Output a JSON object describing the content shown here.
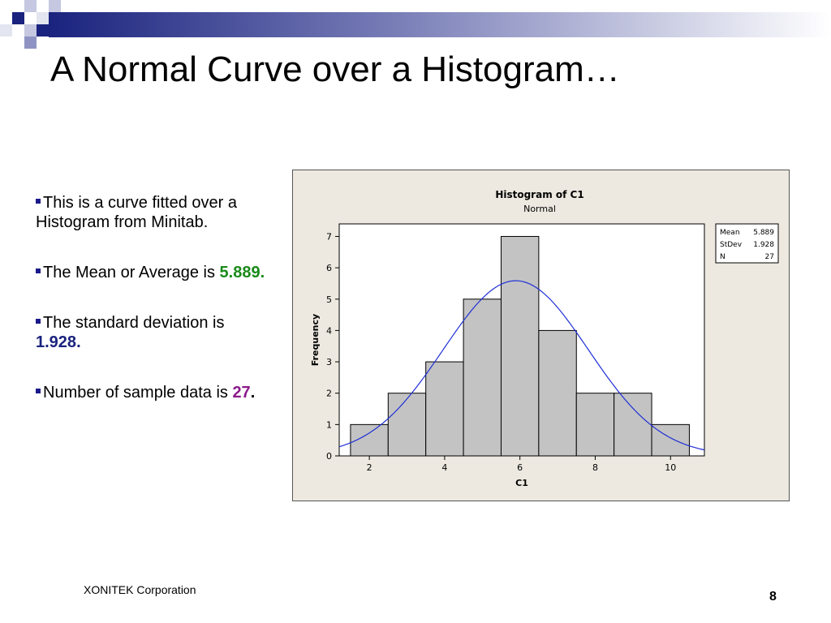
{
  "slide": {
    "title": "A Normal Curve over a Histogram…",
    "bullets": [
      {
        "text": "This is a curve fitted over a Histogram from Minitab.",
        "value": "",
        "suffix": ""
      },
      {
        "text": "The Mean or Average is ",
        "value": "5.889",
        "suffix": "."
      },
      {
        "text": "The standard deviation is ",
        "value": "1.928",
        "suffix": "."
      },
      {
        "text": "Number of sample data is ",
        "value": "27",
        "suffix": "."
      }
    ],
    "footer": "XONITEK Corporation",
    "page_number": "8"
  },
  "colors": {
    "accent_navy": "#1a237e",
    "mean_value": "#1a8a1a",
    "n_value": "#8b1a8b",
    "chart_panel": "#ede9e0",
    "bar_fill": "#c3c3c3",
    "curve": "#1f2fd6"
  },
  "chart_data": {
    "type": "bar",
    "title": "Histogram of C1",
    "subtitle": "Normal",
    "xlabel": "C1",
    "ylabel": "Frequency",
    "bins": [
      {
        "x0": 1.5,
        "x1": 2.5,
        "count": 1
      },
      {
        "x0": 2.5,
        "x1": 3.5,
        "count": 2
      },
      {
        "x0": 3.5,
        "x1": 4.5,
        "count": 3
      },
      {
        "x0": 4.5,
        "x1": 5.5,
        "count": 5
      },
      {
        "x0": 5.5,
        "x1": 6.5,
        "count": 7
      },
      {
        "x0": 6.5,
        "x1": 7.5,
        "count": 4
      },
      {
        "x0": 7.5,
        "x1": 8.5,
        "count": 2
      },
      {
        "x0": 8.5,
        "x1": 9.5,
        "count": 2
      },
      {
        "x0": 9.5,
        "x1": 10.5,
        "count": 1
      }
    ],
    "xticks": [
      2,
      4,
      6,
      8,
      10
    ],
    "yticks": [
      0,
      1,
      2,
      3,
      4,
      5,
      6,
      7
    ],
    "xlim": [
      1.2,
      10.9
    ],
    "ylim": [
      0,
      7.4
    ],
    "fit": {
      "distribution": "normal",
      "mean": 5.889,
      "stdev": 1.928,
      "n": 27,
      "bin_width": 1
    },
    "legend_position": "top-right",
    "stats": [
      {
        "label": "Mean",
        "value": "5.889"
      },
      {
        "label": "StDev",
        "value": "1.928"
      },
      {
        "label": "N",
        "value": "27"
      }
    ]
  }
}
